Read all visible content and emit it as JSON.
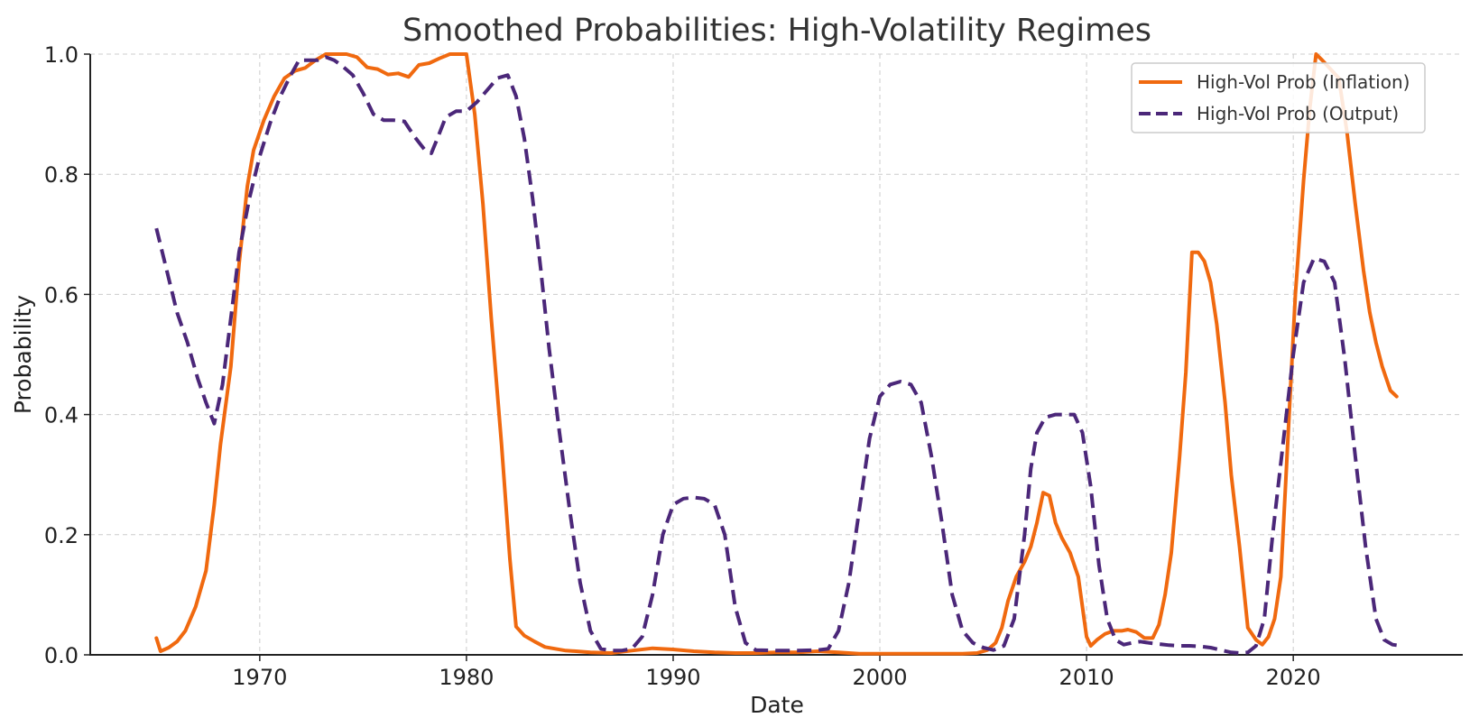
{
  "chart_data": {
    "type": "line",
    "title": "Smoothed Probabilities: High-Volatility Regimes",
    "xlabel": "Date",
    "ylabel": "Probability",
    "xlim": [
      1961.8,
      2028.2
    ],
    "ylim": [
      0.0,
      1.0
    ],
    "xticks": [
      1970,
      1980,
      1990,
      2000,
      2010,
      2020
    ],
    "xtick_labels": [
      "1970",
      "1980",
      "1990",
      "2000",
      "2010",
      "2020"
    ],
    "yticks": [
      0.0,
      0.2,
      0.4,
      0.6,
      0.8,
      1.0
    ],
    "ytick_labels": [
      "0.0",
      "0.2",
      "0.4",
      "0.6",
      "0.8",
      "1.0"
    ],
    "grid": true,
    "legend_position": "top-right",
    "series": [
      {
        "name": "High-Vol Prob (Inflation)",
        "color": "#f0690f",
        "style": "solid",
        "x": [
          1965.0,
          1965.2,
          1965.6,
          1966.0,
          1966.4,
          1966.9,
          1967.4,
          1967.8,
          1968.1,
          1968.6,
          1969.0,
          1969.4,
          1969.7,
          1970.2,
          1970.7,
          1971.2,
          1971.7,
          1972.2,
          1972.7,
          1973.2,
          1973.7,
          1974.2,
          1974.7,
          1975.2,
          1975.7,
          1976.2,
          1976.7,
          1977.2,
          1977.7,
          1978.2,
          1978.7,
          1979.2,
          1979.7,
          1980.0,
          1980.4,
          1980.8,
          1981.2,
          1981.7,
          1982.1,
          1982.4,
          1982.8,
          1983.3,
          1983.8,
          1984.3,
          1984.8,
          1985.3,
          1986.0,
          1987.0,
          1988.0,
          1989.0,
          1990.0,
          1991.0,
          1992.0,
          1993.0,
          1994.0,
          1995.0,
          1996.0,
          1997.0,
          1998.0,
          1999.0,
          2000.0,
          2001.0,
          2002.0,
          2003.0,
          2004.0,
          2004.7,
          2005.2,
          2005.6,
          2005.9,
          2006.2,
          2006.6,
          2007.0,
          2007.3,
          2007.6,
          2007.9,
          2008.2,
          2008.5,
          2008.8,
          2009.2,
          2009.6,
          2010.0,
          2010.2,
          2010.5,
          2010.9,
          2011.3,
          2011.7,
          2012.0,
          2012.4,
          2012.8,
          2013.2,
          2013.5,
          2013.8,
          2014.1,
          2014.5,
          2014.8,
          2015.1,
          2015.4,
          2015.7,
          2016.0,
          2016.3,
          2016.7,
          2017.0,
          2017.4,
          2017.8,
          2018.2,
          2018.5,
          2018.8,
          2019.1,
          2019.4,
          2019.8,
          2020.1,
          2020.5,
          2020.8,
          2021.1,
          2021.4,
          2021.8,
          2022.2,
          2022.6,
          2023.0,
          2023.4,
          2023.7,
          2024.0,
          2024.3,
          2024.7,
          2025.0
        ],
        "y": [
          0.028,
          0.006,
          0.012,
          0.022,
          0.04,
          0.08,
          0.14,
          0.25,
          0.35,
          0.48,
          0.65,
          0.78,
          0.84,
          0.89,
          0.93,
          0.96,
          0.972,
          0.977,
          0.99,
          1.0,
          1.0,
          1.0,
          0.995,
          0.978,
          0.975,
          0.966,
          0.968,
          0.962,
          0.982,
          0.985,
          0.993,
          1.0,
          1.0,
          1.0,
          0.9,
          0.75,
          0.56,
          0.35,
          0.16,
          0.047,
          0.032,
          0.022,
          0.013,
          0.01,
          0.007,
          0.006,
          0.004,
          0.003,
          0.007,
          0.011,
          0.009,
          0.006,
          0.004,
          0.003,
          0.003,
          0.004,
          0.004,
          0.006,
          0.004,
          0.002,
          0.002,
          0.002,
          0.002,
          0.002,
          0.002,
          0.003,
          0.008,
          0.02,
          0.045,
          0.09,
          0.13,
          0.155,
          0.18,
          0.22,
          0.27,
          0.265,
          0.22,
          0.195,
          0.17,
          0.13,
          0.03,
          0.015,
          0.025,
          0.035,
          0.04,
          0.04,
          0.042,
          0.038,
          0.028,
          0.028,
          0.05,
          0.1,
          0.17,
          0.33,
          0.47,
          0.67,
          0.67,
          0.655,
          0.62,
          0.55,
          0.42,
          0.3,
          0.18,
          0.045,
          0.025,
          0.017,
          0.03,
          0.06,
          0.13,
          0.4,
          0.6,
          0.79,
          0.91,
          1.0,
          0.99,
          0.975,
          0.96,
          0.87,
          0.75,
          0.64,
          0.57,
          0.52,
          0.48,
          0.44,
          0.43
        ]
      },
      {
        "name": "High-Vol Prob (Output)",
        "color": "#4b2779",
        "style": "dashed",
        "x": [
          1965.0,
          1965.5,
          1966.0,
          1966.5,
          1967.0,
          1967.4,
          1967.8,
          1968.2,
          1968.6,
          1969.0,
          1969.5,
          1970.0,
          1970.5,
          1971.0,
          1971.5,
          1971.9,
          1972.3,
          1972.8,
          1973.2,
          1973.6,
          1974.0,
          1974.5,
          1975.0,
          1975.5,
          1976.0,
          1976.5,
          1977.0,
          1977.5,
          1978.0,
          1978.3,
          1978.6,
          1979.0,
          1979.5,
          1980.0,
          1980.5,
          1981.0,
          1981.5,
          1982.0,
          1982.4,
          1982.8,
          1983.2,
          1983.6,
          1984.0,
          1984.5,
          1985.0,
          1985.5,
          1986.0,
          1986.5,
          1987.0,
          1987.5,
          1988.0,
          1988.5,
          1989.0,
          1989.5,
          1990.0,
          1990.5,
          1991.0,
          1991.5,
          1992.0,
          1992.5,
          1993.0,
          1993.5,
          1994.0,
          1995.0,
          1996.0,
          1997.0,
          1997.5,
          1998.0,
          1998.5,
          1999.0,
          1999.5,
          2000.0,
          2000.5,
          2001.0,
          2001.5,
          2002.0,
          2002.5,
          2003.0,
          2003.5,
          2004.0,
          2004.5,
          2005.0,
          2005.5,
          2006.0,
          2006.5,
          2007.0,
          2007.3,
          2007.6,
          2008.0,
          2008.5,
          2009.0,
          2009.4,
          2009.8,
          2010.2,
          2010.6,
          2011.0,
          2011.4,
          2011.8,
          2012.2,
          2012.6,
          2013.0,
          2013.5,
          2014.0,
          2014.5,
          2015.0,
          2015.5,
          2016.0,
          2016.5,
          2017.0,
          2017.4,
          2017.8,
          2018.2,
          2018.6,
          2019.0,
          2019.5,
          2020.0,
          2020.5,
          2021.0,
          2021.5,
          2022.0,
          2022.5,
          2023.0,
          2023.5,
          2024.0,
          2024.4,
          2024.8,
          2025.0
        ],
        "y": [
          0.71,
          0.64,
          0.57,
          0.52,
          0.46,
          0.42,
          0.385,
          0.45,
          0.56,
          0.67,
          0.76,
          0.83,
          0.885,
          0.93,
          0.965,
          0.99,
          0.99,
          0.99,
          0.995,
          0.99,
          0.98,
          0.965,
          0.935,
          0.9,
          0.89,
          0.89,
          0.888,
          0.862,
          0.84,
          0.835,
          0.86,
          0.895,
          0.905,
          0.905,
          0.92,
          0.94,
          0.96,
          0.965,
          0.93,
          0.86,
          0.76,
          0.64,
          0.51,
          0.37,
          0.24,
          0.12,
          0.04,
          0.01,
          0.007,
          0.007,
          0.01,
          0.03,
          0.1,
          0.2,
          0.25,
          0.26,
          0.262,
          0.26,
          0.25,
          0.2,
          0.08,
          0.02,
          0.008,
          0.007,
          0.007,
          0.008,
          0.01,
          0.04,
          0.12,
          0.24,
          0.36,
          0.43,
          0.45,
          0.455,
          0.45,
          0.42,
          0.33,
          0.22,
          0.1,
          0.04,
          0.02,
          0.012,
          0.008,
          0.015,
          0.06,
          0.2,
          0.31,
          0.37,
          0.395,
          0.4,
          0.4,
          0.4,
          0.37,
          0.28,
          0.15,
          0.06,
          0.025,
          0.017,
          0.02,
          0.022,
          0.02,
          0.018,
          0.016,
          0.015,
          0.015,
          0.014,
          0.012,
          0.008,
          0.004,
          0.003,
          0.004,
          0.015,
          0.06,
          0.2,
          0.35,
          0.5,
          0.62,
          0.66,
          0.655,
          0.62,
          0.49,
          0.33,
          0.18,
          0.06,
          0.025,
          0.017,
          0.016
        ]
      }
    ]
  }
}
